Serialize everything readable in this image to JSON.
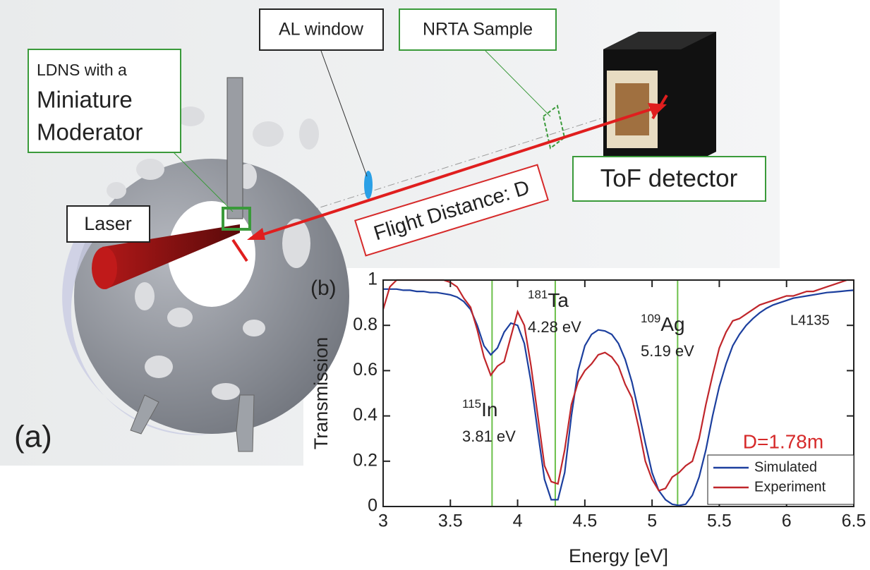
{
  "diagram": {
    "ldns_label": [
      "LDNS with a",
      "Miniature",
      "Moderator"
    ],
    "al_window": "AL window",
    "nrta_sample": "NRTA Sample",
    "tof_detector": "ToF detector",
    "laser": "Laser",
    "flight_distance": "Flight Distance: D",
    "panel_label": "(a)"
  },
  "chart_data": {
    "type": "line",
    "panel_label": "(b)",
    "x_label": "Energy [eV]",
    "y_label": "Transmission",
    "x": [
      3.0,
      3.05,
      3.1,
      3.15,
      3.2,
      3.25,
      3.3,
      3.35,
      3.4,
      3.45,
      3.5,
      3.55,
      3.6,
      3.65,
      3.7,
      3.75,
      3.8,
      3.85,
      3.9,
      3.95,
      4.0,
      4.05,
      4.1,
      4.15,
      4.2,
      4.25,
      4.3,
      4.35,
      4.4,
      4.45,
      4.5,
      4.55,
      4.6,
      4.65,
      4.7,
      4.75,
      4.8,
      4.85,
      4.9,
      4.95,
      5.0,
      5.05,
      5.1,
      5.15,
      5.2,
      5.25,
      5.3,
      5.35,
      5.4,
      5.45,
      5.5,
      5.55,
      5.6,
      5.65,
      5.7,
      5.75,
      5.8,
      5.85,
      5.9,
      5.95,
      6.0,
      6.05,
      6.1,
      6.15,
      6.2,
      6.25,
      6.3,
      6.35,
      6.4,
      6.45,
      6.5
    ],
    "series": [
      {
        "name": "Simulated",
        "color": "#1c3f9e",
        "values": [
          0.96,
          0.96,
          0.96,
          0.955,
          0.955,
          0.95,
          0.95,
          0.945,
          0.945,
          0.94,
          0.935,
          0.925,
          0.905,
          0.87,
          0.8,
          0.71,
          0.67,
          0.7,
          0.77,
          0.81,
          0.8,
          0.72,
          0.55,
          0.33,
          0.12,
          0.03,
          0.03,
          0.15,
          0.4,
          0.6,
          0.71,
          0.76,
          0.78,
          0.775,
          0.76,
          0.72,
          0.65,
          0.55,
          0.42,
          0.28,
          0.15,
          0.07,
          0.03,
          0.01,
          0.005,
          0.01,
          0.05,
          0.13,
          0.25,
          0.4,
          0.53,
          0.63,
          0.71,
          0.76,
          0.8,
          0.83,
          0.855,
          0.875,
          0.89,
          0.9,
          0.91,
          0.92,
          0.925,
          0.93,
          0.935,
          0.94,
          0.945,
          0.947,
          0.95,
          0.953,
          0.955
        ]
      },
      {
        "name": "Experiment",
        "color": "#c0262b",
        "values": [
          0.87,
          0.97,
          1.0,
          1.0,
          1.0,
          1.0,
          1.0,
          1.0,
          1.0,
          1.0,
          0.99,
          0.97,
          0.92,
          0.88,
          0.78,
          0.66,
          0.58,
          0.62,
          0.64,
          0.75,
          0.86,
          0.8,
          0.62,
          0.4,
          0.18,
          0.11,
          0.1,
          0.25,
          0.45,
          0.55,
          0.6,
          0.63,
          0.67,
          0.68,
          0.66,
          0.62,
          0.54,
          0.48,
          0.35,
          0.2,
          0.12,
          0.07,
          0.08,
          0.13,
          0.15,
          0.18,
          0.2,
          0.3,
          0.45,
          0.58,
          0.7,
          0.77,
          0.82,
          0.83,
          0.85,
          0.87,
          0.89,
          0.9,
          0.91,
          0.92,
          0.93,
          0.93,
          0.94,
          0.95,
          0.95,
          0.96,
          0.97,
          0.98,
          0.99,
          1.0,
          1.0
        ]
      }
    ],
    "xlim": [
      3,
      6.5
    ],
    "ylim": [
      0,
      1
    ],
    "xticks": [
      3,
      3.5,
      4,
      4.5,
      5,
      5.5,
      6,
      6.5
    ],
    "yticks": [
      0,
      0.2,
      0.4,
      0.6,
      0.8,
      1
    ],
    "resonances": [
      {
        "mass": "115",
        "element": "In",
        "label": "3.81 eV",
        "energy": 3.81
      },
      {
        "mass": "181",
        "element": "Ta",
        "label": "4.28 eV",
        "energy": 4.28
      },
      {
        "mass": "109",
        "element": "Ag",
        "label": "5.19 eV",
        "energy": 5.19
      }
    ],
    "resonance_color": "#6cc04a",
    "sample_id": "L4135",
    "distance_label": "D=1.78m",
    "distance_color": "#d62a2a",
    "legend": "lower right"
  }
}
